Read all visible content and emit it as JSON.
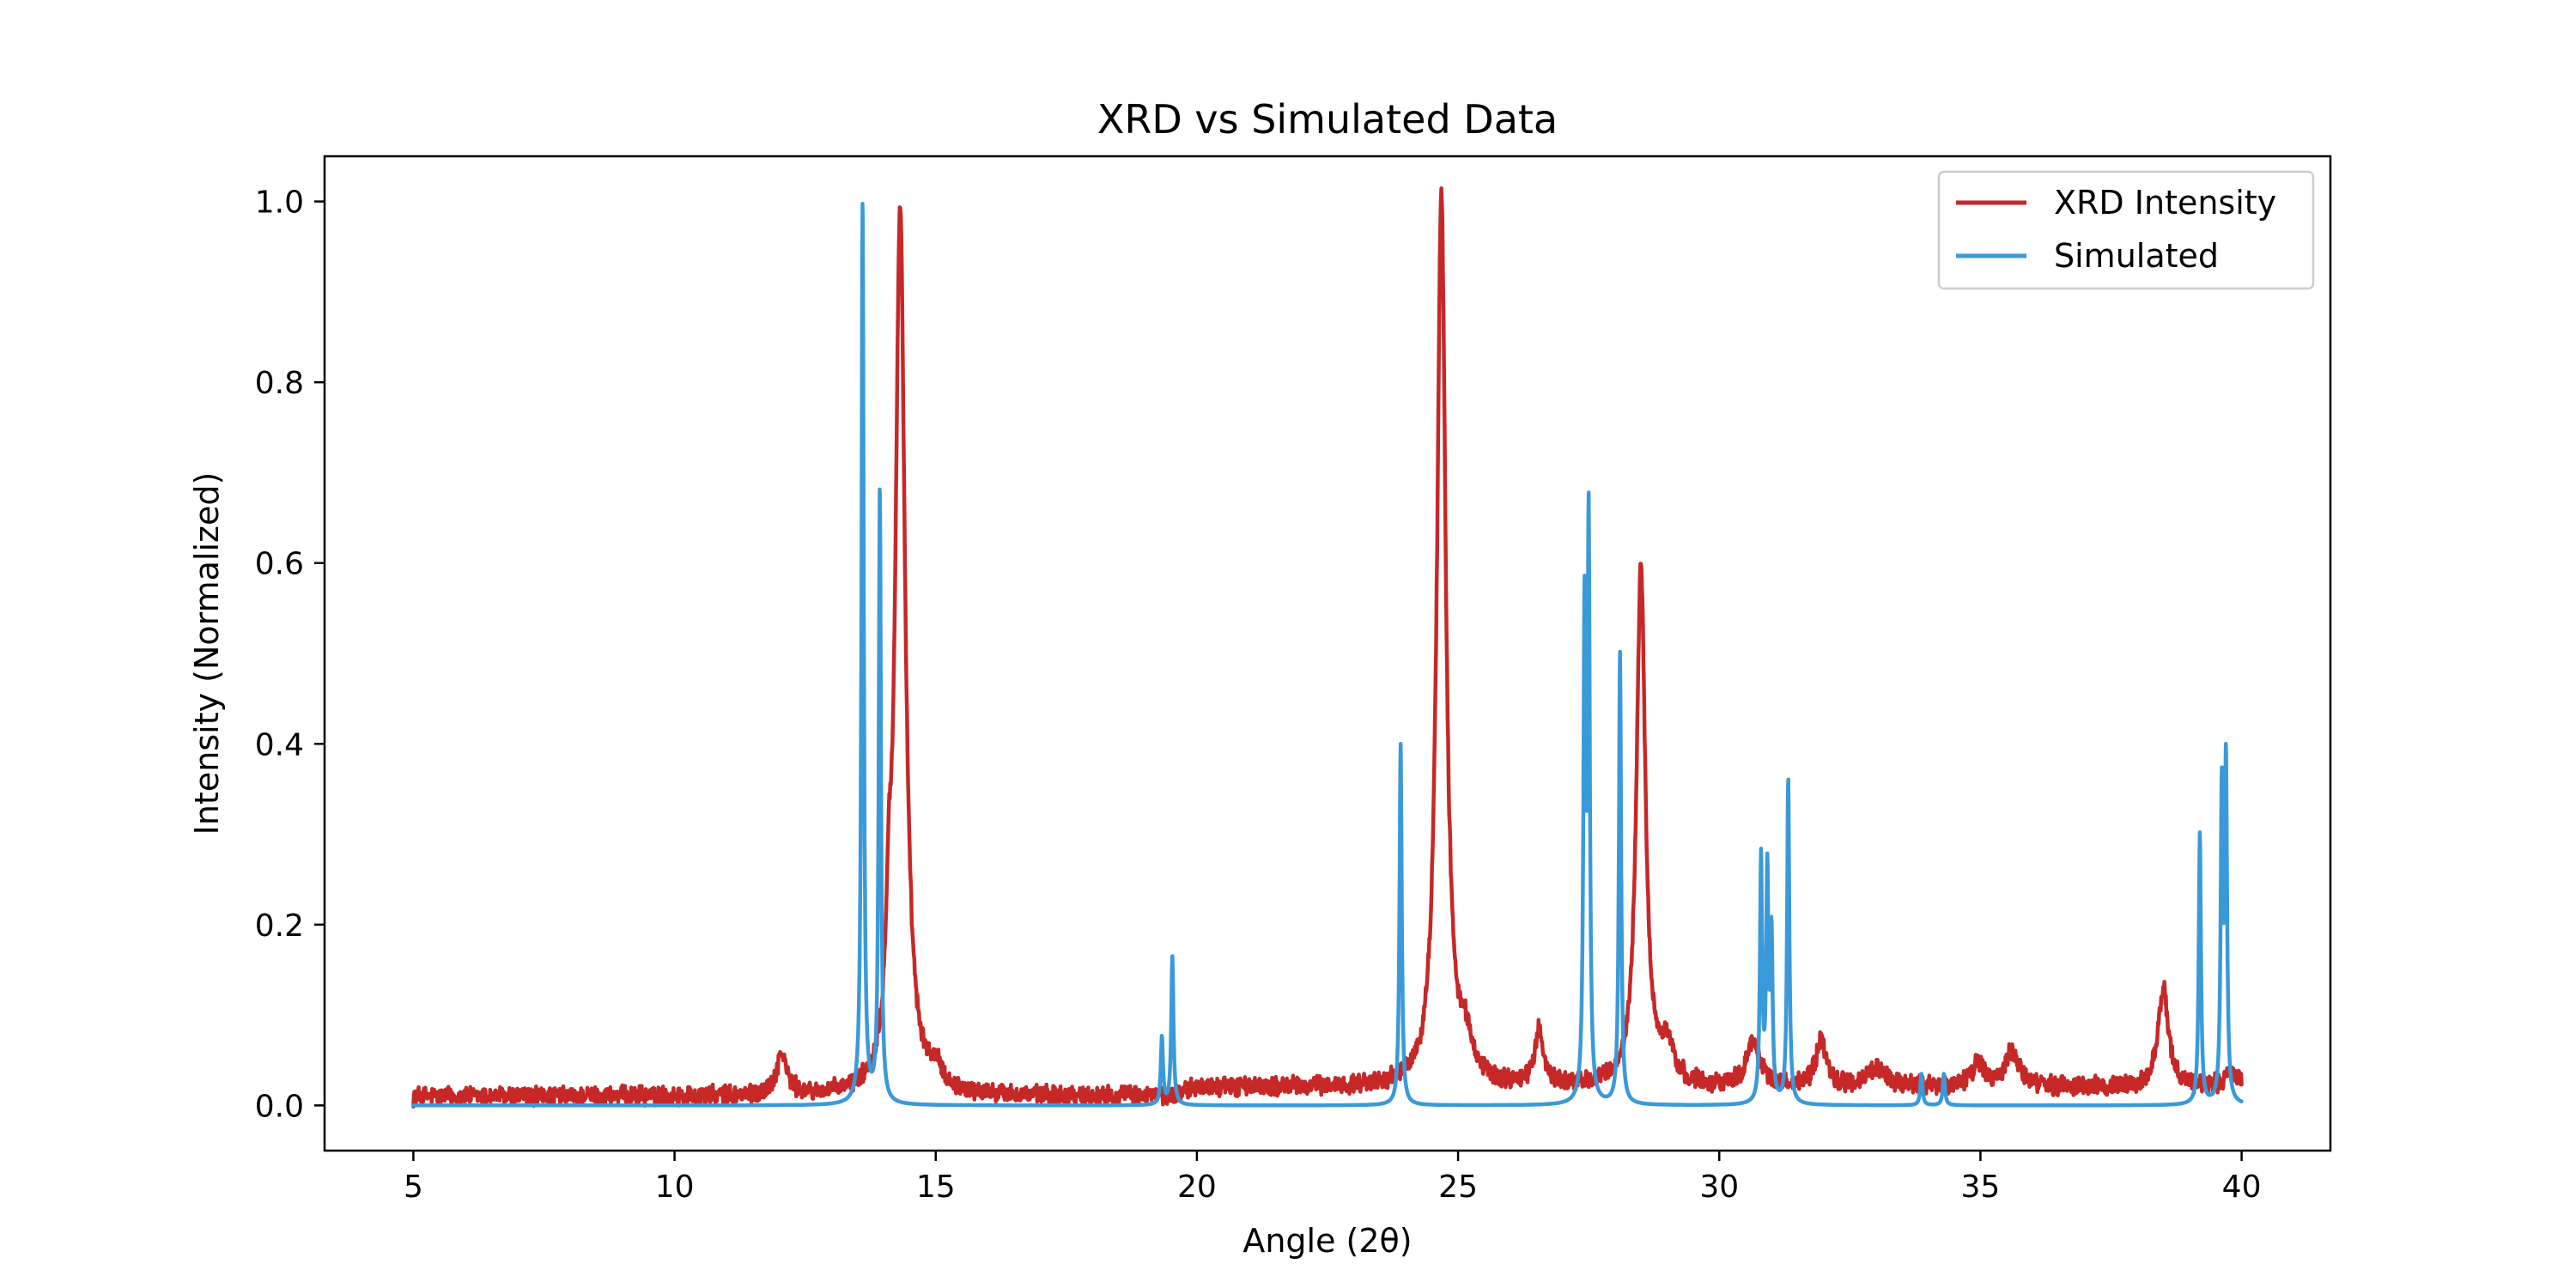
{
  "chart_data": {
    "type": "line",
    "title": "XRD vs Simulated Data",
    "xlabel": "Angle (2θ)",
    "ylabel": "Intensity (Normalized)",
    "xlim": [
      3.3,
      41.7
    ],
    "ylim": [
      -0.05,
      1.05
    ],
    "xticks": [
      5,
      10,
      15,
      20,
      25,
      30,
      35,
      40
    ],
    "xtick_labels": [
      "5",
      "10",
      "15",
      "20",
      "25",
      "30",
      "35",
      "40"
    ],
    "yticks": [
      0.0,
      0.2,
      0.4,
      0.6,
      0.8,
      1.0
    ],
    "ytick_labels": [
      "0.0",
      "0.2",
      "0.4",
      "0.6",
      "0.8",
      "1.0"
    ],
    "grid": false,
    "legend_position": "top-right",
    "series": [
      {
        "name": "XRD Intensity",
        "color": "#c62828",
        "x_range": [
          5,
          40
        ],
        "baseline": [
          [
            5,
            0.01
          ],
          [
            19.5,
            0.01
          ],
          [
            20,
            0.02
          ],
          [
            25,
            0.02
          ],
          [
            30,
            0.02
          ],
          [
            40,
            0.02
          ]
        ],
        "peaks": [
          {
            "center": 12.05,
            "height": 0.045,
            "width": 0.12
          },
          {
            "center": 14.1,
            "height": 0.12,
            "width": 0.06
          },
          {
            "center": 14.32,
            "height": 0.98,
            "width": 0.11
          },
          {
            "center": 15.0,
            "height": 0.02,
            "width": 0.15
          },
          {
            "center": 24.68,
            "height": 0.99,
            "width": 0.1
          },
          {
            "center": 25.15,
            "height": 0.04,
            "width": 0.15
          },
          {
            "center": 26.55,
            "height": 0.06,
            "width": 0.1
          },
          {
            "center": 28.5,
            "height": 0.58,
            "width": 0.1
          },
          {
            "center": 29.0,
            "height": 0.04,
            "width": 0.15
          },
          {
            "center": 30.65,
            "height": 0.05,
            "width": 0.15
          },
          {
            "center": 31.95,
            "height": 0.05,
            "width": 0.12
          },
          {
            "center": 33.0,
            "height": 0.02,
            "width": 0.2
          },
          {
            "center": 34.95,
            "height": 0.025,
            "width": 0.15
          },
          {
            "center": 35.6,
            "height": 0.04,
            "width": 0.15
          },
          {
            "center": 38.5,
            "height": 0.11,
            "width": 0.12
          },
          {
            "center": 39.8,
            "height": 0.015,
            "width": 0.15
          }
        ]
      },
      {
        "name": "Simulated",
        "color": "#3a9ad9",
        "x_range": [
          5,
          40
        ],
        "baseline": [
          [
            5,
            0.0
          ],
          [
            40,
            0.0
          ]
        ],
        "peaks": [
          {
            "center": 13.6,
            "height": 1.0,
            "width": 0.025
          },
          {
            "center": 13.93,
            "height": 0.68,
            "width": 0.025
          },
          {
            "center": 19.33,
            "height": 0.075,
            "width": 0.025
          },
          {
            "center": 19.53,
            "height": 0.165,
            "width": 0.025
          },
          {
            "center": 23.9,
            "height": 0.4,
            "width": 0.025
          },
          {
            "center": 27.42,
            "height": 0.53,
            "width": 0.025
          },
          {
            "center": 27.5,
            "height": 0.63,
            "width": 0.025
          },
          {
            "center": 28.1,
            "height": 0.5,
            "width": 0.025
          },
          {
            "center": 30.8,
            "height": 0.27,
            "width": 0.025
          },
          {
            "center": 30.92,
            "height": 0.25,
            "width": 0.025
          },
          {
            "center": 31.0,
            "height": 0.18,
            "width": 0.025
          },
          {
            "center": 31.32,
            "height": 0.36,
            "width": 0.025
          },
          {
            "center": 33.87,
            "height": 0.035,
            "width": 0.025
          },
          {
            "center": 34.3,
            "height": 0.035,
            "width": 0.025
          },
          {
            "center": 39.2,
            "height": 0.3,
            "width": 0.025
          },
          {
            "center": 39.62,
            "height": 0.34,
            "width": 0.025
          },
          {
            "center": 39.7,
            "height": 0.37,
            "width": 0.025
          }
        ]
      }
    ]
  }
}
